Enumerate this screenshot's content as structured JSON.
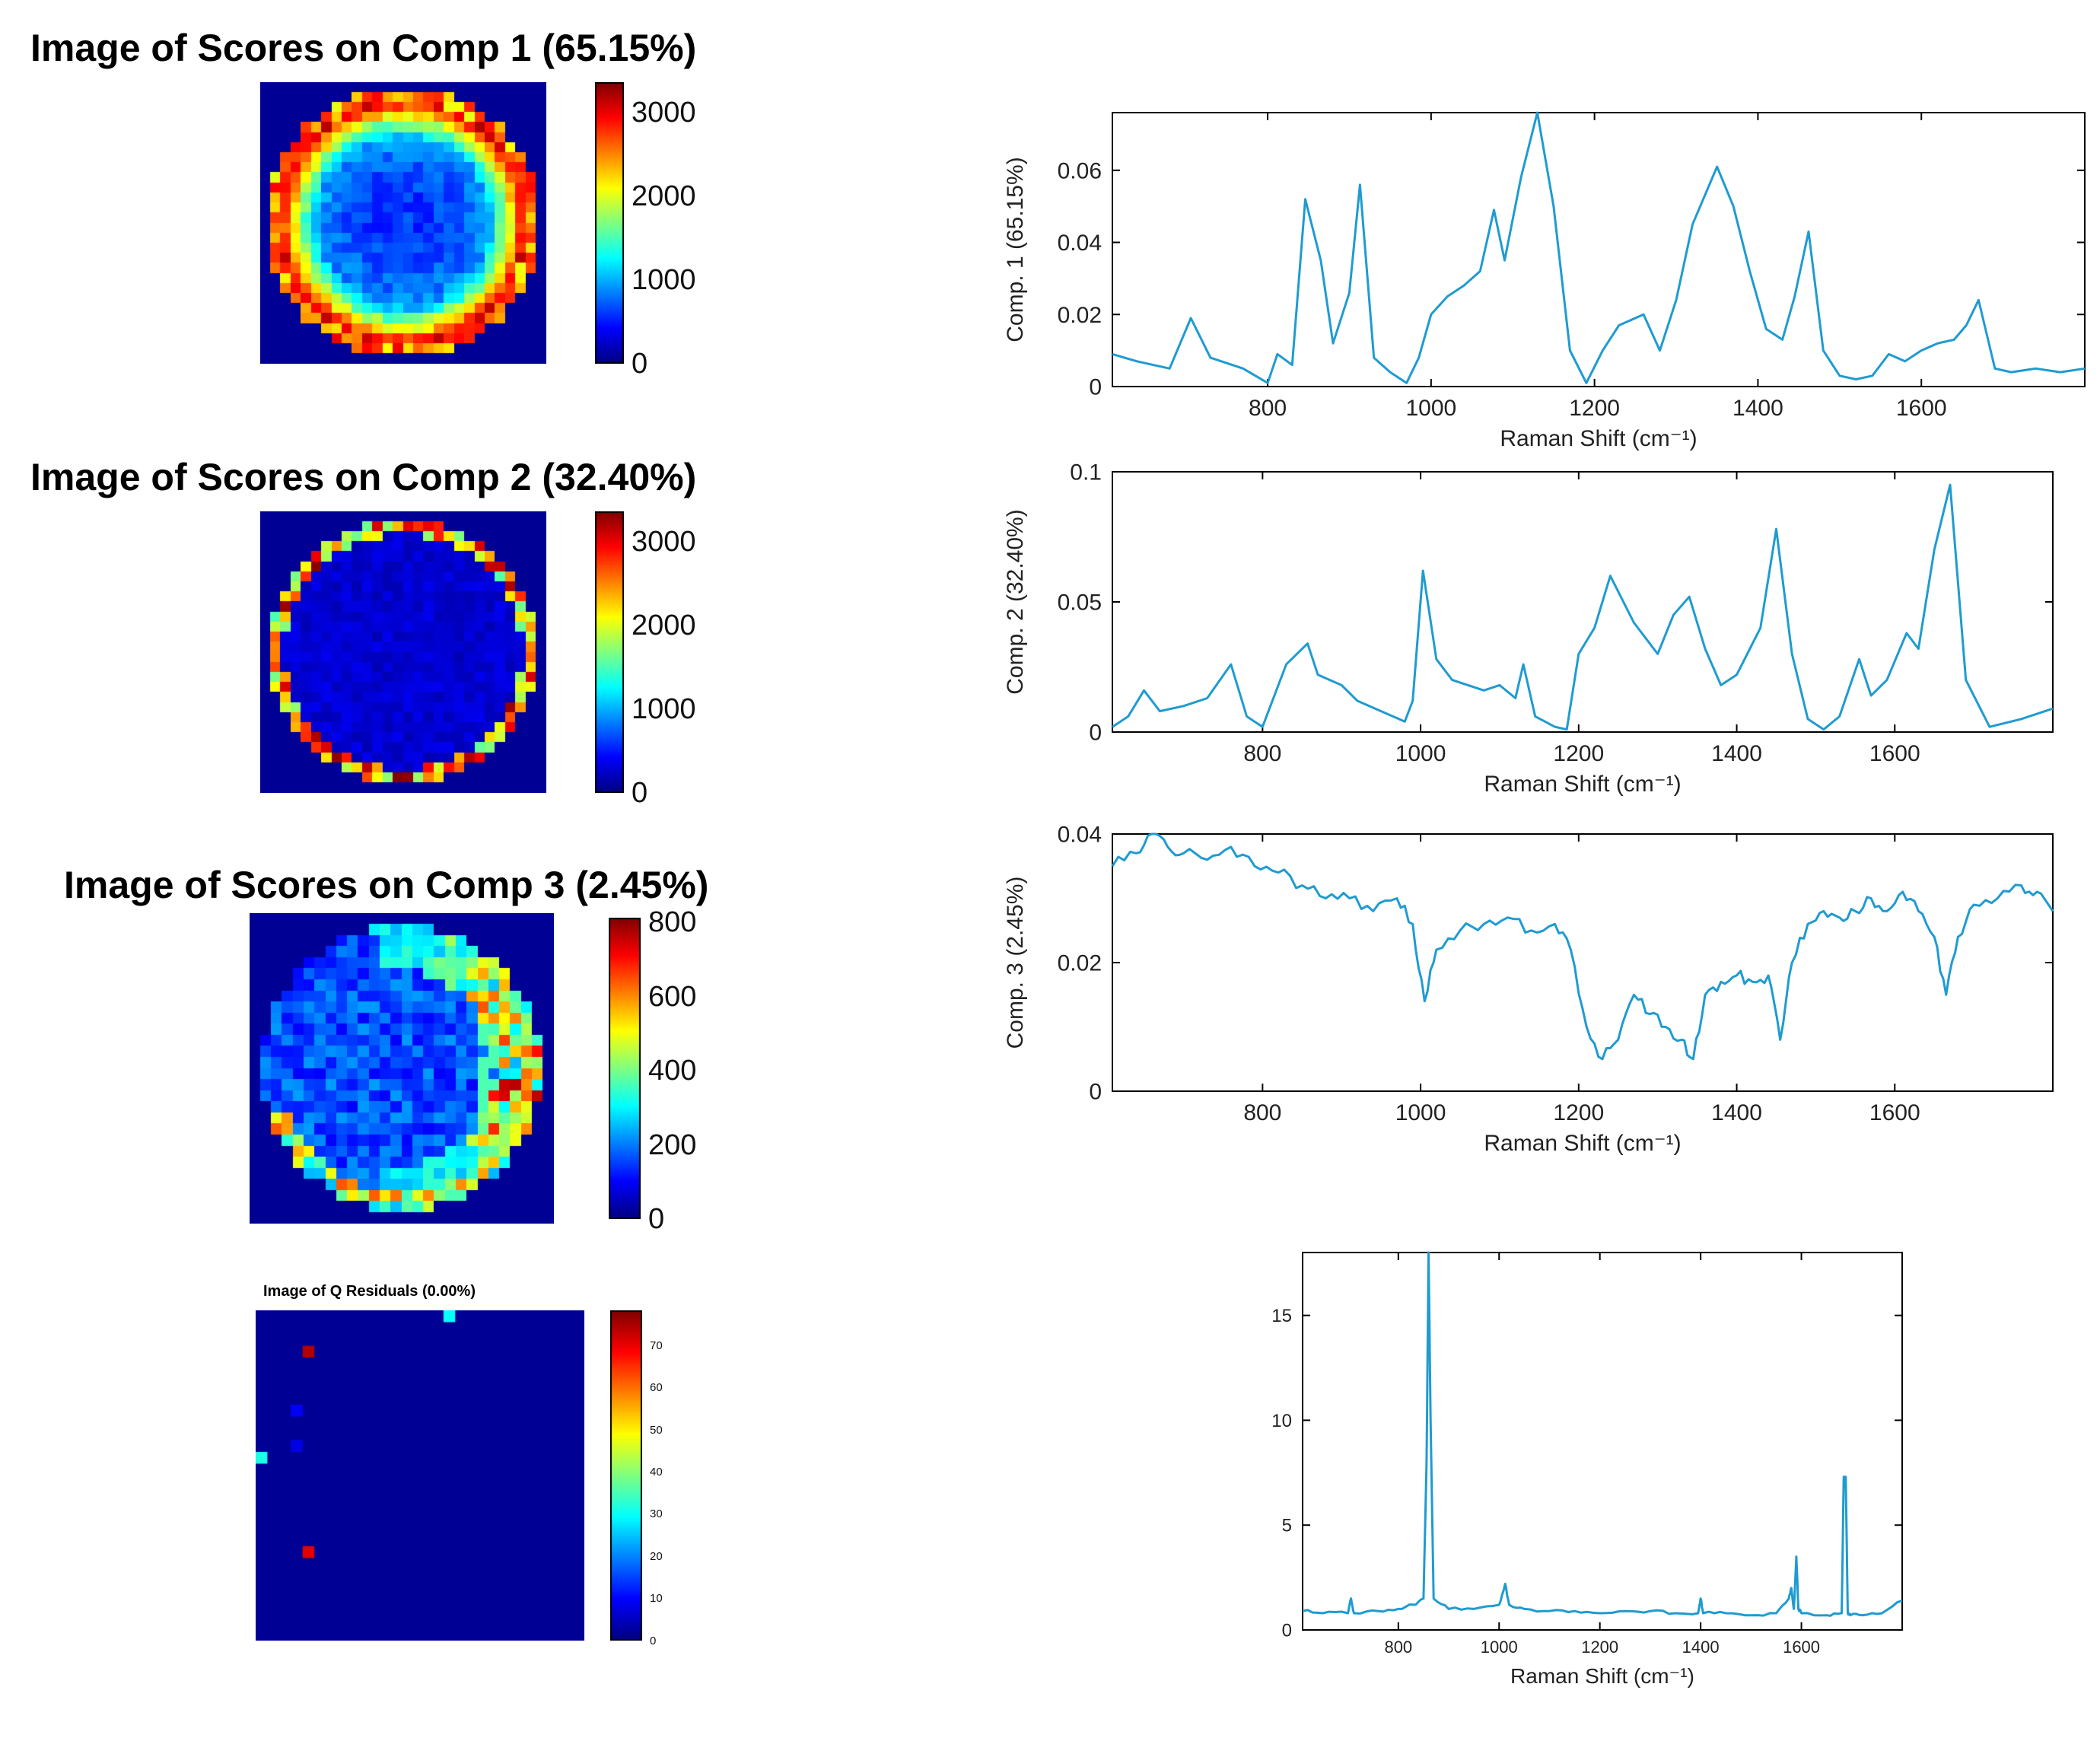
{
  "score_images": [
    {
      "title": "Image of Scores on Comp 1 (65.15%)",
      "pattern": "ring",
      "colorbar_ticks": [
        "3000",
        "2000",
        "1000",
        "0"
      ]
    },
    {
      "title": "Image of Scores on Comp 2 (32.40%)",
      "pattern": "edge",
      "colorbar_ticks": [
        "3000",
        "2000",
        "1000",
        "0"
      ]
    },
    {
      "title": "Image of Scores on Comp 3 (2.45%)",
      "pattern": "crescent",
      "colorbar_ticks": [
        "800",
        "600",
        "400",
        "200",
        "0"
      ]
    },
    {
      "title": "Image of Q Residuals (0.00%)",
      "pattern": "sparse",
      "colorbar_ticks": [
        "70",
        "60",
        "50",
        "40",
        "30",
        "20",
        "10",
        "0"
      ]
    }
  ],
  "chart_data": [
    {
      "type": "line",
      "name": "Comp 1 loading",
      "xlabel": "Raman Shift (cm⁻¹)",
      "ylabel": "Comp. 1 (65.15%)",
      "xlim": [
        610,
        1800
      ],
      "ylim": [
        0,
        0.076
      ],
      "xticks": [
        "800",
        "1000",
        "1200",
        "1400",
        "1600"
      ],
      "yticks": [
        "0",
        "0.02",
        "0.04",
        "0.06"
      ],
      "x": [
        610,
        640,
        680,
        706,
        730,
        770,
        800,
        812,
        830,
        846,
        865,
        880,
        900,
        913,
        930,
        950,
        970,
        985,
        1000,
        1020,
        1040,
        1060,
        1077,
        1090,
        1110,
        1130,
        1150,
        1170,
        1190,
        1210,
        1230,
        1260,
        1280,
        1300,
        1320,
        1350,
        1370,
        1390,
        1410,
        1430,
        1445,
        1462,
        1480,
        1500,
        1520,
        1540,
        1560,
        1580,
        1600,
        1620,
        1640,
        1655,
        1670,
        1690,
        1710,
        1740,
        1770,
        1800
      ],
      "values": [
        0.009,
        0.007,
        0.005,
        0.019,
        0.008,
        0.005,
        0.001,
        0.009,
        0.006,
        0.052,
        0.035,
        0.012,
        0.026,
        0.056,
        0.008,
        0.004,
        0.001,
        0.008,
        0.02,
        0.025,
        0.028,
        0.032,
        0.049,
        0.035,
        0.058,
        0.076,
        0.05,
        0.01,
        0.001,
        0.01,
        0.017,
        0.02,
        0.01,
        0.024,
        0.045,
        0.061,
        0.05,
        0.032,
        0.016,
        0.013,
        0.025,
        0.043,
        0.01,
        0.003,
        0.002,
        0.003,
        0.009,
        0.007,
        0.01,
        0.012,
        0.013,
        0.017,
        0.024,
        0.005,
        0.004,
        0.005,
        0.004,
        0.005
      ]
    },
    {
      "type": "line",
      "name": "Comp 2 loading",
      "xlabel": "Raman Shift (cm⁻¹)",
      "ylabel": "Comp. 2 (32.40%)",
      "xlim": [
        610,
        1800
      ],
      "ylim": [
        0,
        0.1
      ],
      "xticks": [
        "800",
        "1000",
        "1200",
        "1400",
        "1600"
      ],
      "yticks": [
        "0",
        "0.05",
        "0.1"
      ],
      "x": [
        610,
        630,
        650,
        670,
        700,
        730,
        760,
        780,
        800,
        830,
        857,
        870,
        900,
        920,
        950,
        980,
        990,
        1003,
        1020,
        1040,
        1060,
        1080,
        1100,
        1120,
        1130,
        1145,
        1170,
        1185,
        1200,
        1220,
        1240,
        1270,
        1300,
        1320,
        1340,
        1360,
        1380,
        1400,
        1430,
        1450,
        1470,
        1490,
        1510,
        1530,
        1555,
        1570,
        1590,
        1615,
        1630,
        1650,
        1670,
        1690,
        1720,
        1760,
        1800
      ],
      "values": [
        0.002,
        0.006,
        0.016,
        0.008,
        0.01,
        0.013,
        0.026,
        0.006,
        0.002,
        0.026,
        0.034,
        0.022,
        0.018,
        0.012,
        0.008,
        0.004,
        0.012,
        0.062,
        0.028,
        0.02,
        0.018,
        0.016,
        0.018,
        0.013,
        0.026,
        0.006,
        0.002,
        0.001,
        0.03,
        0.04,
        0.06,
        0.042,
        0.03,
        0.045,
        0.052,
        0.032,
        0.018,
        0.022,
        0.04,
        0.078,
        0.03,
        0.005,
        0.001,
        0.006,
        0.028,
        0.014,
        0.02,
        0.038,
        0.032,
        0.07,
        0.095,
        0.02,
        0.002,
        0.005,
        0.009
      ]
    },
    {
      "type": "line",
      "name": "Comp 3 loading",
      "xlabel": "Raman Shift (cm⁻¹)",
      "ylabel": "Comp. 3 (2.45%)",
      "xlim": [
        610,
        1800
      ],
      "ylim": [
        0,
        0.04
      ],
      "xticks": [
        "800",
        "1000",
        "1200",
        "1400",
        "1600"
      ],
      "yticks": [
        "0",
        "0.02",
        "0.04"
      ],
      "x": [
        610,
        640,
        660,
        680,
        700,
        730,
        760,
        790,
        820,
        850,
        880,
        910,
        940,
        970,
        990,
        1005,
        1020,
        1050,
        1080,
        1110,
        1140,
        1170,
        1190,
        1210,
        1230,
        1250,
        1270,
        1290,
        1310,
        1330,
        1345,
        1360,
        1380,
        1400,
        1420,
        1440,
        1455,
        1470,
        1490,
        1510,
        1530,
        1550,
        1570,
        1590,
        1610,
        1630,
        1650,
        1665,
        1680,
        1700,
        1730,
        1760,
        1780,
        1800
      ],
      "values": [
        0.035,
        0.037,
        0.04,
        0.038,
        0.037,
        0.036,
        0.038,
        0.035,
        0.034,
        0.032,
        0.03,
        0.03,
        0.028,
        0.03,
        0.026,
        0.014,
        0.022,
        0.025,
        0.026,
        0.027,
        0.025,
        0.026,
        0.022,
        0.01,
        0.005,
        0.008,
        0.015,
        0.012,
        0.01,
        0.008,
        0.005,
        0.015,
        0.017,
        0.018,
        0.017,
        0.018,
        0.008,
        0.02,
        0.026,
        0.028,
        0.027,
        0.028,
        0.03,
        0.028,
        0.031,
        0.028,
        0.024,
        0.015,
        0.024,
        0.029,
        0.03,
        0.032,
        0.031,
        0.028
      ]
    },
    {
      "type": "line",
      "name": "Q residual spectrum",
      "xlabel": "Raman Shift (cm⁻¹)",
      "ylabel": "",
      "xlim": [
        610,
        1800
      ],
      "ylim": [
        0,
        18
      ],
      "xticks": [
        "800",
        "1000",
        "1200",
        "1400",
        "1600"
      ],
      "yticks": [
        "0",
        "5",
        "10",
        "15"
      ],
      "x": [
        610,
        650,
        700,
        706,
        712,
        760,
        800,
        830,
        850,
        856,
        860,
        864,
        870,
        900,
        950,
        1000,
        1012,
        1020,
        1050,
        1100,
        1150,
        1200,
        1250,
        1300,
        1350,
        1395,
        1400,
        1405,
        1450,
        1500,
        1550,
        1575,
        1580,
        1585,
        1590,
        1594,
        1600,
        1650,
        1680,
        1684,
        1688,
        1692,
        1697,
        1720,
        1760,
        1800
      ],
      "values": [
        0.9,
        0.8,
        0.8,
        1.5,
        0.8,
        0.9,
        1.0,
        1.2,
        1.5,
        8.0,
        18.0,
        10.0,
        1.5,
        1.0,
        1.0,
        1.2,
        2.2,
        1.2,
        1.0,
        0.9,
        0.9,
        0.8,
        0.9,
        0.9,
        0.8,
        0.8,
        1.5,
        0.8,
        0.8,
        0.7,
        0.8,
        1.5,
        2.0,
        1.0,
        3.5,
        1.0,
        0.8,
        0.7,
        0.8,
        7.3,
        7.3,
        0.8,
        0.7,
        0.7,
        0.8,
        1.4
      ]
    }
  ]
}
